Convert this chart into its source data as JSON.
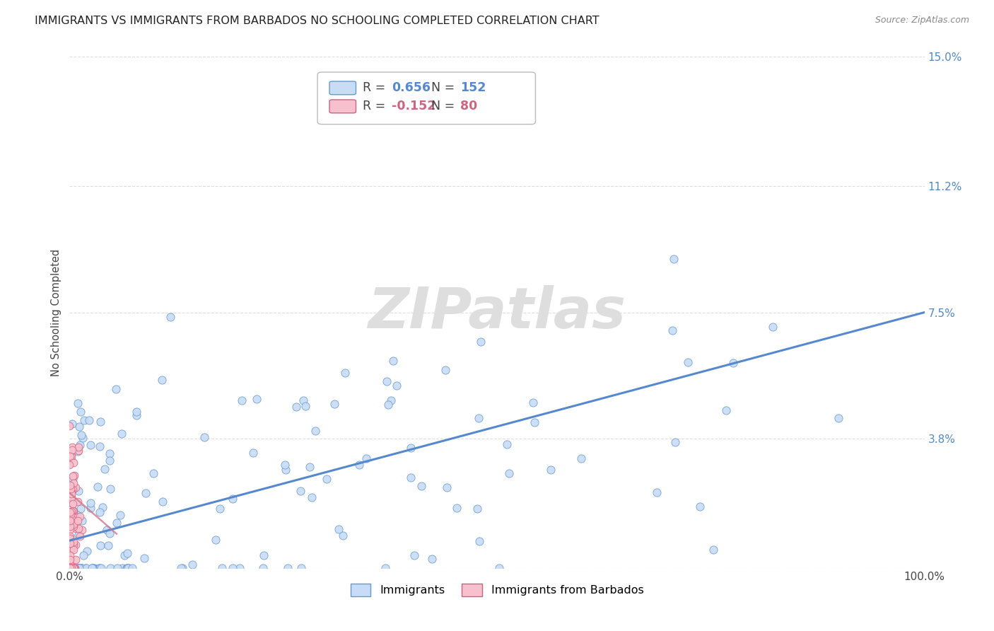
{
  "title": "IMMIGRANTS VS IMMIGRANTS FROM BARBADOS NO SCHOOLING COMPLETED CORRELATION CHART",
  "source": "Source: ZipAtlas.com",
  "ylabel": "No Schooling Completed",
  "xlim": [
    0.0,
    1.0
  ],
  "ylim": [
    0.0,
    0.15
  ],
  "xticks": [
    0.0,
    0.2,
    0.4,
    0.6,
    0.8,
    1.0
  ],
  "xticklabels": [
    "0.0%",
    "",
    "",
    "",
    "",
    "100.0%"
  ],
  "yticks": [
    0.0,
    0.038,
    0.075,
    0.112,
    0.15
  ],
  "yticklabels": [
    "",
    "3.8%",
    "7.5%",
    "11.2%",
    "15.0%"
  ],
  "blue_fill": "#c8dcf5",
  "blue_edge": "#6699cc",
  "pink_fill": "#f8c0cc",
  "pink_edge": "#d06080",
  "blue_line_color": "#5588cc",
  "pink_line_color": "#cc7088",
  "grid_color": "#dddddd",
  "watermark_color": "#dedede",
  "r_blue": 0.656,
  "n_blue": 152,
  "r_pink": -0.152,
  "n_pink": 80,
  "legend_label_blue": "Immigrants",
  "legend_label_pink": "Immigrants from Barbados",
  "title_fontsize": 11.5,
  "tick_fontsize": 11,
  "blue_line_intercept": 0.008,
  "blue_line_end_x": 1.0,
  "blue_line_end_y": 0.075,
  "pink_line_start_x": 0.0,
  "pink_line_start_y": 0.022,
  "pink_line_end_x": 0.055,
  "pink_line_end_y": 0.01
}
